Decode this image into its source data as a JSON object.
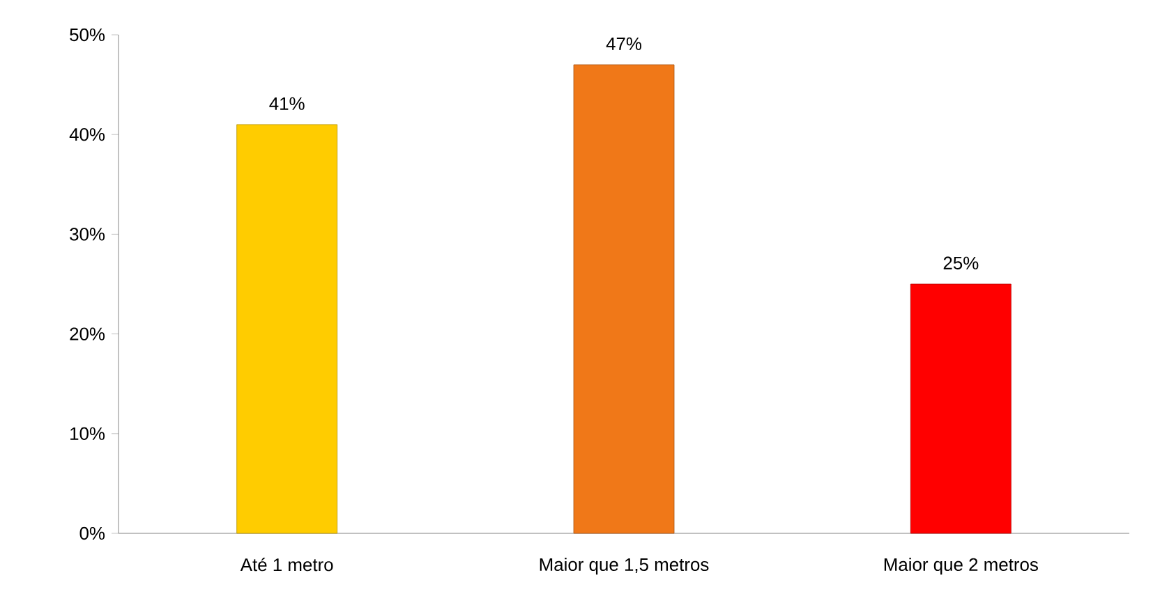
{
  "chart_data": {
    "type": "bar",
    "categories": [
      "Até 1 metro",
      "Maior que 1,5 metros",
      "Maior que 2 metros"
    ],
    "values": [
      41,
      47,
      25
    ],
    "colors": [
      "#ffcc00",
      "#f07818",
      "#ff0000"
    ],
    "value_labels": [
      "41%",
      "47%",
      "25%"
    ],
    "ylim": [
      0,
      50
    ],
    "yticks": [
      {
        "value": 0,
        "label": "0%"
      },
      {
        "value": 10,
        "label": "10%"
      },
      {
        "value": 20,
        "label": "20%"
      },
      {
        "value": 30,
        "label": "30%"
      },
      {
        "value": 40,
        "label": "40%"
      },
      {
        "value": 50,
        "label": "50%"
      }
    ]
  }
}
